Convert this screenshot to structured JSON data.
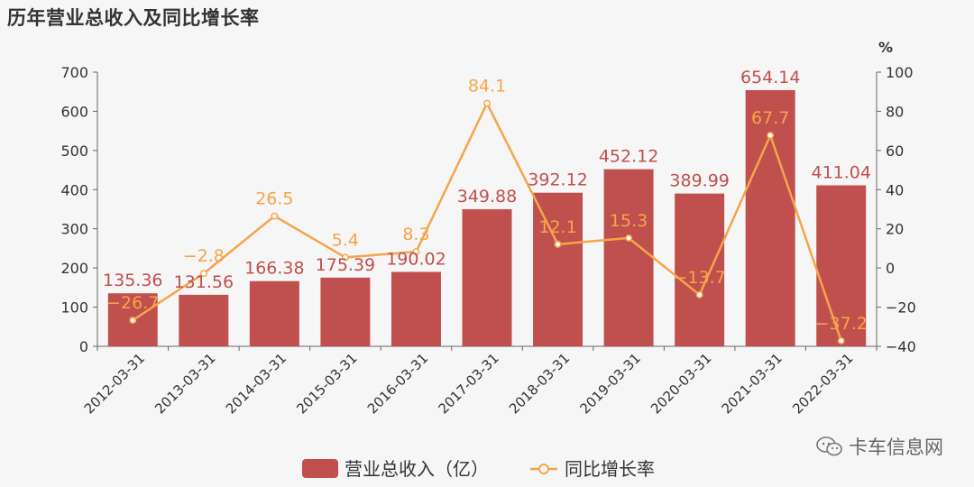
{
  "title": "历年营业总收入及同比增长率",
  "watermark": "卡车信息网",
  "colors": {
    "bar": "#c0504d",
    "line": "#f5a54a",
    "axis": "#666666"
  },
  "chart_data": {
    "type": "bar",
    "categories": [
      "2012-03-31",
      "2013-03-31",
      "2014-03-31",
      "2015-03-31",
      "2016-03-31",
      "2017-03-31",
      "2018-03-31",
      "2019-03-31",
      "2020-03-31",
      "2021-03-31",
      "2022-03-31"
    ],
    "series": [
      {
        "name": "营业总收入（亿）",
        "type": "bar",
        "axis": "left",
        "values": [
          135.36,
          131.56,
          166.38,
          175.39,
          190.02,
          349.88,
          392.12,
          452.12,
          389.99,
          654.14,
          411.04
        ],
        "labels": [
          "135.36",
          "131.56",
          "166.38",
          "175.39",
          "190.02",
          "349.88",
          "392.12",
          "452.12",
          "389.99",
          "654.14",
          "411.04"
        ]
      },
      {
        "name": "同比增长率",
        "type": "line",
        "axis": "right",
        "values": [
          -26.7,
          -2.8,
          26.5,
          5.4,
          8.3,
          84.1,
          12.1,
          15.3,
          -13.7,
          67.7,
          -37.2
        ],
        "labels": [
          "−26.7",
          "−2.8",
          "26.5",
          "5.4",
          "8.3",
          "84.1",
          "12.1",
          "15.3",
          "−13.7",
          "67.7",
          "−37.2"
        ]
      }
    ],
    "y_left": {
      "range": [
        0,
        700
      ],
      "ticks": [
        0,
        100,
        200,
        300,
        400,
        500,
        600,
        700
      ]
    },
    "y_right": {
      "range": [
        -40,
        100
      ],
      "ticks": [
        -40,
        -20,
        0,
        20,
        40,
        60,
        80,
        100
      ],
      "unit": "%"
    },
    "grid": false,
    "legend_position": "bottom-center"
  }
}
